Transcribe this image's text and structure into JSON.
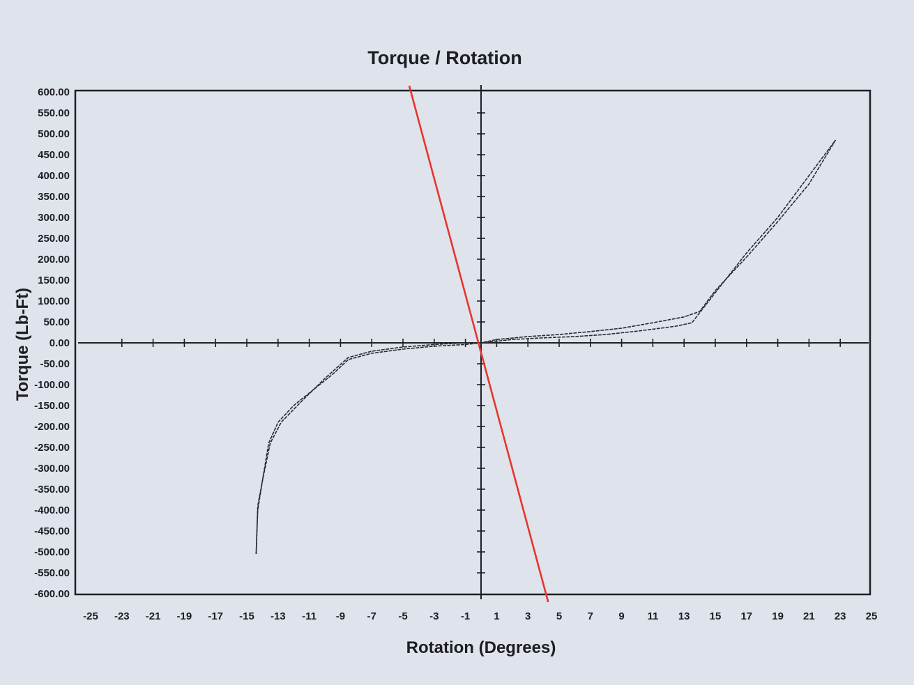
{
  "chart_data": {
    "type": "line",
    "title": "Torque / Rotation",
    "xlabel": "Rotation (Degrees)",
    "ylabel": "Torque (Lb-Ft)",
    "xlim": [
      -25,
      25
    ],
    "ylim": [
      -600,
      600
    ],
    "x_ticks": [
      "-25",
      "-23",
      "-21",
      "-19",
      "-17",
      "-15",
      "-13",
      "-11",
      "-9",
      "-7",
      "-5",
      "-3",
      "-1",
      "1",
      "3",
      "5",
      "7",
      "9",
      "11",
      "13",
      "15",
      "17",
      "19",
      "21",
      "23",
      "25"
    ],
    "y_ticks": [
      "600.00",
      "550.00",
      "500.00",
      "450.00",
      "400.00",
      "350.00",
      "300.00",
      "250.00",
      "200.00",
      "150.00",
      "100.00",
      "50.00",
      "0.00",
      "-50.00",
      "-100.00",
      "-150.00",
      "-200.00",
      "-250.00",
      "-300.00",
      "-350.00",
      "-400.00",
      "-450.00",
      "-500.00",
      "-550.00",
      "-600.00"
    ],
    "grid": false,
    "series": [
      {
        "color": "#2a2a32",
        "x": [
          -14.4,
          -14.3,
          -14.0,
          -13.5,
          -12.8,
          -11.5,
          -10.0,
          -8.5,
          -7.0,
          -5.0,
          -3.0,
          -1.0,
          0,
          2.0,
          4.0,
          6.0,
          8.0,
          10.0,
          11.5,
          12.5,
          13.5,
          15.0,
          17.0,
          19.0,
          21.0,
          22.7
        ],
        "y": [
          -505,
          -400,
          -330,
          -240,
          -190,
          -140,
          -85,
          -35,
          -20,
          -10,
          -4,
          0,
          0,
          8,
          12,
          15,
          20,
          28,
          35,
          40,
          48,
          120,
          215,
          300,
          400,
          485
        ]
      },
      {
        "color": "#2a2a32",
        "x": [
          22.7,
          21.0,
          19.0,
          17.0,
          15.0,
          14.0,
          13.0,
          12.0,
          11.0,
          9.0,
          7.0,
          5.0,
          3.0,
          1.0,
          0,
          -1.0,
          -3.0,
          -5.0,
          -7.0,
          -8.5,
          -9.5,
          -10.5,
          -12.0,
          -13.0,
          -13.6,
          -14.0,
          -14.3,
          -14.4
        ],
        "y": [
          485,
          380,
          290,
          205,
          125,
          75,
          62,
          55,
          48,
          35,
          27,
          20,
          15,
          8,
          0,
          -4,
          -8,
          -15,
          -25,
          -40,
          -75,
          -105,
          -150,
          -190,
          -240,
          -330,
          -390,
          -505
        ]
      },
      {
        "color": "#e8342e",
        "x": [
          -4.6,
          4.3
        ],
        "y": [
          615,
          -620
        ]
      }
    ]
  }
}
